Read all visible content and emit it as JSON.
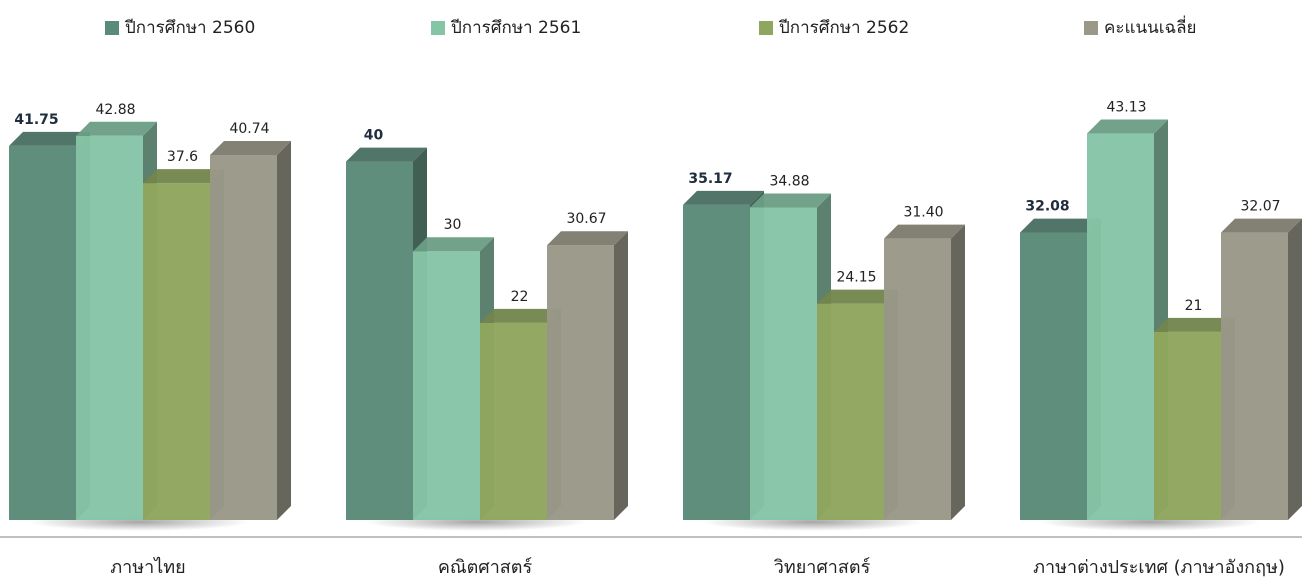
{
  "chart_data": {
    "type": "bar",
    "categories": [
      "ภาษาไทย",
      "คณิตศาสตร์",
      "วิทยาศาสตร์",
      "ภาษาต่างประเทศ (ภาษาอังกฤษ)"
    ],
    "series": [
      {
        "name": "ปีการศึกษา 2560",
        "color": "#5a8a78",
        "values": [
          41.75,
          40,
          35.17,
          32.08
        ],
        "labels": [
          "41.75",
          "40",
          "35.17",
          "32.08"
        ],
        "bold_labels": true
      },
      {
        "name": "ปีการศึกษา 2561",
        "color": "#86c4a6",
        "values": [
          42.88,
          30,
          34.88,
          43.13
        ],
        "labels": [
          "42.88",
          "30",
          "34.88",
          "43.13"
        ],
        "bold_labels": false
      },
      {
        "name": "ปีการศึกษา 2562",
        "color": "#8fa65e",
        "values": [
          37.6,
          22,
          24.15,
          21
        ],
        "labels": [
          "37.6",
          "22",
          "24.15",
          "21"
        ],
        "bold_labels": false
      },
      {
        "name": "คะแนนเฉลี่ย",
        "color": "#9a9888",
        "values": [
          40.74,
          30.67,
          31.4,
          32.07
        ],
        "labels": [
          "40.74",
          "30.67",
          "31.40",
          "32.07"
        ],
        "bold_labels": false
      }
    ],
    "ylim": [
      0,
      50
    ],
    "grid": false,
    "legend_position": "top",
    "style": "3d-column"
  }
}
